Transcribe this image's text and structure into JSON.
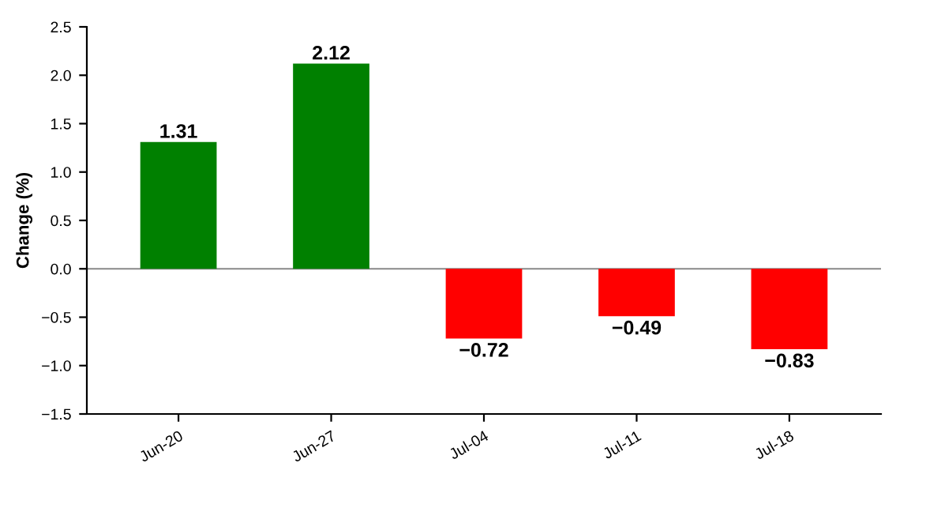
{
  "chart_data": {
    "type": "bar",
    "ylabel": "Change (%)",
    "categories": [
      "Jun-20",
      "Jun-27",
      "Jul-04",
      "Jul-11",
      "Jul-18"
    ],
    "values": [
      1.31,
      2.12,
      -0.72,
      -0.49,
      -0.83
    ],
    "colors": [
      "#008000",
      "#008000",
      "#ff0000",
      "#ff0000",
      "#ff0000"
    ],
    "value_labels": [
      "1.31",
      "2.12",
      "−0.72",
      "−0.49",
      "−0.83"
    ],
    "ylim": [
      -1.5,
      2.5
    ],
    "yticks": [
      {
        "value": -1.5,
        "label": "−1.5"
      },
      {
        "value": -1.0,
        "label": "−1.0"
      },
      {
        "value": -0.5,
        "label": "−0.5"
      },
      {
        "value": 0,
        "label": "0.0"
      },
      {
        "value": 0.5,
        "label": "0.5"
      },
      {
        "value": 1.0,
        "label": "1.0"
      },
      {
        "value": 1.5,
        "label": "1.5"
      },
      {
        "value": 2.0,
        "label": "2.0"
      },
      {
        "value": 2.5,
        "label": "2.5"
      }
    ],
    "ref_lines": [
      {
        "axis": "y",
        "value": 0,
        "color": "#888888"
      }
    ],
    "grid": false,
    "legend": false
  }
}
